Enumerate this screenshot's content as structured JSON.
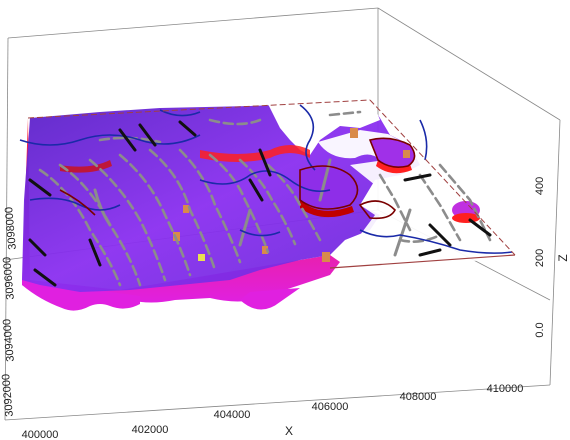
{
  "x_axis": {
    "label": "X",
    "ticks": [
      "400000",
      "402000",
      "404000",
      "406000",
      "408000",
      "410000"
    ]
  },
  "y_axis": {
    "ticks": [
      "3098000",
      "3096000",
      "3094000",
      "3092000"
    ]
  },
  "z_axis": {
    "label": "Z",
    "ticks": [
      "0.0",
      "200",
      "400"
    ]
  },
  "colors": {
    "purple": "#7a2fd0",
    "magenta": "#e020e0",
    "red": "#e01818",
    "darkred": "#7a0000",
    "blue_line": "#1a2aa8",
    "gray_dash": "#8c8c8c",
    "black": "#111111",
    "orange_block": "#d98a4a"
  }
}
